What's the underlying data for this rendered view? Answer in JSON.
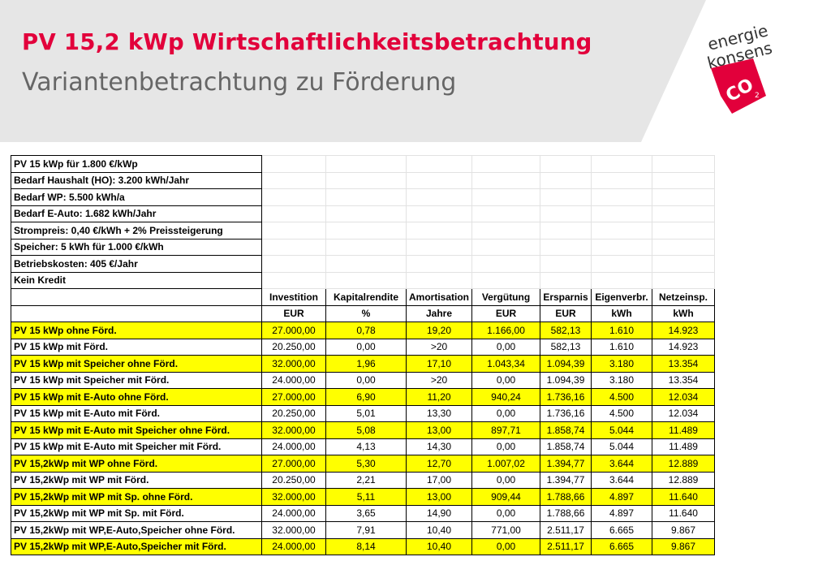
{
  "header": {
    "title": "PV 15,2 kWp Wirtschaftlichkeitsbetrachtung",
    "subtitle": "Variantenbetrachtung zu Förderung"
  },
  "logo": {
    "line1": "energie",
    "line2": "konsens",
    "mark": "CO",
    "sub": "2"
  },
  "assumptions": [
    "PV 15 kWp  für 1.800 €/kWp",
    "Bedarf Haushalt (HO): 3.200 kWh/Jahr",
    "Bedarf WP: 5.500 kWh/a",
    "Bedarf E-Auto: 1.682 kWh/Jahr",
    "Strompreis: 0,40 €/kWh + 2% Preissteigerung",
    "Speicher: 5 kWh für 1.000 €/kWh",
    "Betriebskosten: 405 €/Jahr",
    "Kein Kredit"
  ],
  "columns": [
    "Investition",
    "Kapitalrendite",
    "Amortisation",
    "Vergütung",
    "Ersparnis",
    "Eigenverbr.",
    "Netzeinsp."
  ],
  "units": [
    "EUR",
    "%",
    "Jahre",
    "EUR",
    "EUR",
    "kWh",
    "kWh"
  ],
  "rows": [
    {
      "label": "PV 15 kWp ohne Förd.",
      "values": [
        "27.000,00",
        "0,78",
        "19,20",
        "1.166,00",
        "582,13",
        "1.610",
        "14.923"
      ],
      "highlight": true
    },
    {
      "label": "PV 15 kWp mit Förd.",
      "values": [
        "20.250,00",
        "0,00",
        ">20",
        "0,00",
        "582,13",
        "1.610",
        "14.923"
      ],
      "highlight": false
    },
    {
      "label": "PV 15 kWp mit Speicher ohne Förd.",
      "values": [
        "32.000,00",
        "1,96",
        "17,10",
        "1.043,34",
        "1.094,39",
        "3.180",
        "13.354"
      ],
      "highlight": true
    },
    {
      "label": "PV 15 kWp mit Speicher mit Förd.",
      "values": [
        "24.000,00",
        "0,00",
        ">20",
        "0,00",
        "1.094,39",
        "3.180",
        "13.354"
      ],
      "highlight": false
    },
    {
      "label": "PV 15 kWp mit E-Auto ohne Förd.",
      "values": [
        "27.000,00",
        "6,90",
        "11,20",
        "940,24",
        "1.736,16",
        "4.500",
        "12.034"
      ],
      "highlight": true
    },
    {
      "label": "PV 15 kWp mit E-Auto mit Förd.",
      "values": [
        "20.250,00",
        "5,01",
        "13,30",
        "0,00",
        "1.736,16",
        "4.500",
        "12.034"
      ],
      "highlight": false
    },
    {
      "label": "PV 15 kWp mit E-Auto mit Speicher ohne Förd.",
      "values": [
        "32.000,00",
        "5,08",
        "13,00",
        "897,71",
        "1.858,74",
        "5.044",
        "11.489"
      ],
      "highlight": true
    },
    {
      "label": "PV 15 kWp mit E-Auto mit Speicher mit Förd.",
      "values": [
        "24.000,00",
        "4,13",
        "14,30",
        "0,00",
        "1.858,74",
        "5.044",
        "11.489"
      ],
      "highlight": false
    },
    {
      "label": "PV 15,2kWp mit WP ohne Förd.",
      "values": [
        "27.000,00",
        "5,30",
        "12,70",
        "1.007,02",
        "1.394,77",
        "3.644",
        "12.889"
      ],
      "highlight": true
    },
    {
      "label": "PV 15,2kWp mit WP mit  Förd.",
      "values": [
        "20.250,00",
        "2,21",
        "17,00",
        "0,00",
        "1.394,77",
        "3.644",
        "12.889"
      ],
      "highlight": false
    },
    {
      "label": "PV 15,2kWp mit WP  mit Sp. ohne Förd.",
      "values": [
        "32.000,00",
        "5,11",
        "13,00",
        "909,44",
        "1.788,66",
        "4.897",
        "11.640"
      ],
      "highlight": true
    },
    {
      "label": "PV 15,2kWp mit WP mit Sp. mit Förd.",
      "values": [
        "24.000,00",
        "3,65",
        "14,90",
        "0,00",
        "1.788,66",
        "4.897",
        "11.640"
      ],
      "highlight": false
    },
    {
      "label": "PV 15,2kWp mit WP,E-Auto,Speicher ohne Förd.",
      "values": [
        "32.000,00",
        "7,91",
        "10,40",
        "771,00",
        "2.511,17",
        "6.665",
        "9.867"
      ],
      "highlight": false
    },
    {
      "label": "PV 15,2kWp mit WP,E-Auto,Speicher mit Förd.",
      "values": [
        "24.000,00",
        "8,14",
        "10,40",
        "0,00",
        "2.511,17",
        "6.665",
        "9.867"
      ],
      "highlight": true
    }
  ]
}
